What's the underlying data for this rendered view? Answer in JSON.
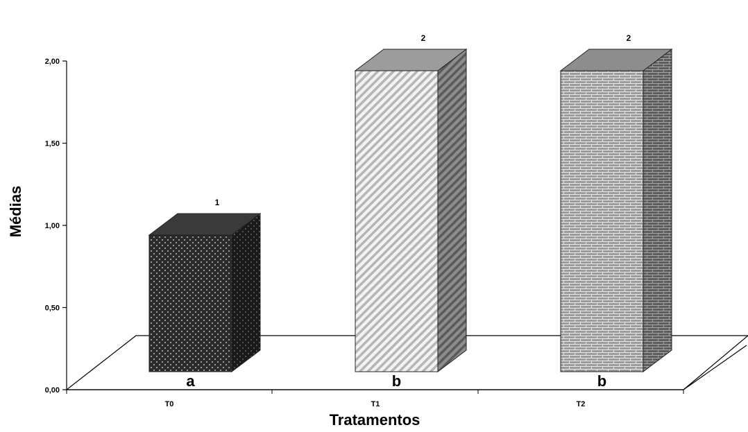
{
  "chart_data": {
    "type": "bar",
    "title": "",
    "xlabel": "Tratamentos",
    "ylabel": "Médias",
    "ylim": [
      0,
      2
    ],
    "yticks": [
      "0,00",
      "0,50",
      "1,00",
      "1,50",
      "2,00"
    ],
    "ytick_values": [
      0,
      0.5,
      1,
      1.5,
      2
    ],
    "categories": [
      "T0",
      "T1",
      "T2"
    ],
    "values": [
      1,
      2,
      2
    ],
    "value_labels": [
      "1",
      "2",
      "2"
    ],
    "group_letters": [
      "a",
      "b",
      "b"
    ],
    "colors": [
      "#2b2b2b",
      "#d4d4d4",
      "#9a9a9a"
    ],
    "grid": false,
    "three_d": true
  }
}
